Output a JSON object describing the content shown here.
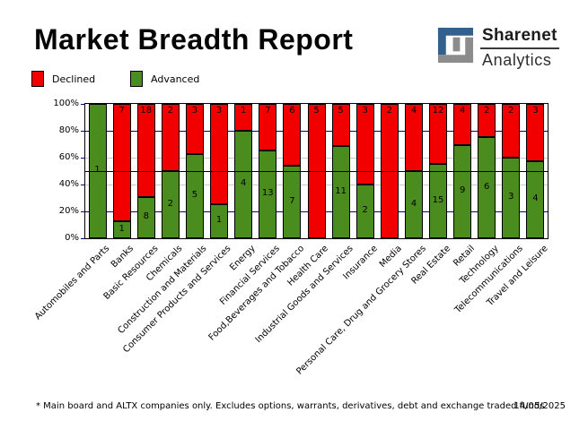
{
  "title": "Market Breadth Report",
  "logo": {
    "line1": "Sharenet",
    "line2": "Analytics",
    "blue": "#33608c",
    "gray": "#8c8c8c"
  },
  "legend": [
    {
      "label": "Declined",
      "color": "#f20000"
    },
    {
      "label": "Advanced",
      "color": "#4a8c1e"
    }
  ],
  "chart_data": {
    "type": "bar",
    "stacked": true,
    "percent_of_total": true,
    "title": "Market Breadth Report",
    "categories": [
      "Automobiles and Parts",
      "Banks",
      "Basic Resources",
      "Chemicals",
      "Construction and Materials",
      "Consumer Products and Services",
      "Energy",
      "Financial Services",
      "Food,Beverages and Tobacco",
      "Health Care",
      "Industrial Goods and Services",
      "Insurance",
      "Media",
      "Personal Care, Drug and Grocery Stores",
      "Real Estate",
      "Retail",
      "Technology",
      "Telecommunications",
      "Travel and Leisure"
    ],
    "series": [
      {
        "name": "Declined",
        "color": "#f20000",
        "values": [
          0,
          7,
          18,
          2,
          3,
          3,
          1,
          7,
          6,
          5,
          5,
          3,
          2,
          4,
          12,
          4,
          2,
          2,
          3
        ]
      },
      {
        "name": "Advanced",
        "color": "#4a8c1e",
        "values": [
          1,
          1,
          8,
          2,
          5,
          1,
          4,
          13,
          7,
          0,
          11,
          2,
          0,
          4,
          15,
          9,
          6,
          3,
          4
        ]
      }
    ],
    "y_ticks": [
      "0%",
      "20%",
      "40%",
      "60%",
      "80%",
      "100%"
    ],
    "ylim": [
      0,
      100
    ],
    "gridlines": [
      {
        "pct": 20,
        "color": "#000080"
      },
      {
        "pct": 40,
        "color": "#c8c8c8"
      },
      {
        "pct": 60,
        "color": "#c8c8c8"
      },
      {
        "pct": 80,
        "color": "#000080"
      }
    ],
    "midline_pct": 50,
    "legend_position": "top-left"
  },
  "footnote": "* Main board and ALTX companies only. Excludes options, warrants, derivatives, debt and exchange traded funds",
  "date": "14/05/2025"
}
